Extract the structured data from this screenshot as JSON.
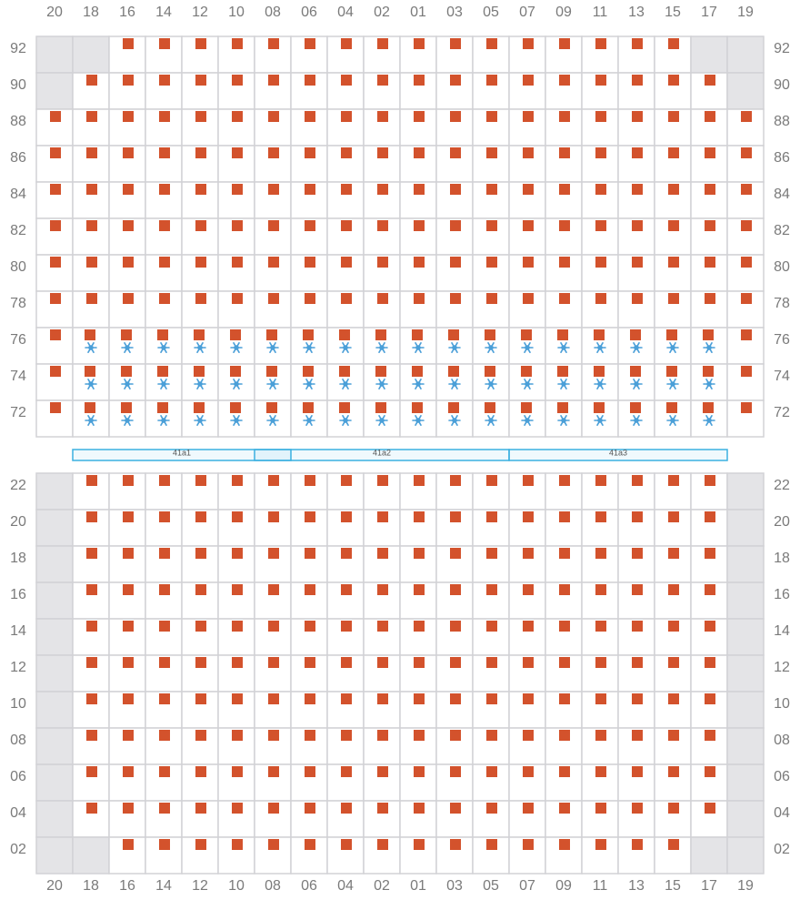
{
  "columns": [
    "20",
    "18",
    "16",
    "14",
    "12",
    "10",
    "08",
    "06",
    "04",
    "02",
    "01",
    "03",
    "05",
    "07",
    "09",
    "11",
    "13",
    "15",
    "17",
    "19"
  ],
  "top": {
    "rows": [
      {
        "label": "92",
        "blocked": [
          0,
          1,
          18,
          19
        ],
        "cold": []
      },
      {
        "label": "90",
        "blocked": [
          0,
          19
        ],
        "cold": []
      },
      {
        "label": "88",
        "blocked": [],
        "cold": []
      },
      {
        "label": "86",
        "blocked": [],
        "cold": []
      },
      {
        "label": "84",
        "blocked": [],
        "cold": []
      },
      {
        "label": "82",
        "blocked": [],
        "cold": []
      },
      {
        "label": "80",
        "blocked": [],
        "cold": []
      },
      {
        "label": "78",
        "blocked": [],
        "cold": []
      },
      {
        "label": "76",
        "blocked": [],
        "cold": [
          1,
          2,
          3,
          4,
          5,
          6,
          7,
          8,
          9,
          10,
          11,
          12,
          13,
          14,
          15,
          16,
          17,
          18
        ]
      },
      {
        "label": "74",
        "blocked": [],
        "cold": [
          1,
          2,
          3,
          4,
          5,
          6,
          7,
          8,
          9,
          10,
          11,
          12,
          13,
          14,
          15,
          16,
          17,
          18
        ]
      },
      {
        "label": "72",
        "blocked": [],
        "cold": [
          1,
          2,
          3,
          4,
          5,
          6,
          7,
          8,
          9,
          10,
          11,
          12,
          13,
          14,
          15,
          16,
          17,
          18
        ]
      }
    ]
  },
  "zones": [
    "41a1",
    "41a2",
    "41a3"
  ],
  "bottom": {
    "rows": [
      {
        "label": "22",
        "blocked": [
          0,
          19
        ],
        "cold": []
      },
      {
        "label": "20",
        "blocked": [
          0,
          19
        ],
        "cold": []
      },
      {
        "label": "18",
        "blocked": [
          0,
          19
        ],
        "cold": []
      },
      {
        "label": "16",
        "blocked": [
          0,
          19
        ],
        "cold": []
      },
      {
        "label": "14",
        "blocked": [
          0,
          19
        ],
        "cold": []
      },
      {
        "label": "12",
        "blocked": [
          0,
          19
        ],
        "cold": []
      },
      {
        "label": "10",
        "blocked": [
          0,
          19
        ],
        "cold": []
      },
      {
        "label": "08",
        "blocked": [
          0,
          19
        ],
        "cold": []
      },
      {
        "label": "06",
        "blocked": [
          0,
          19
        ],
        "cold": []
      },
      {
        "label": "04",
        "blocked": [
          0,
          19
        ],
        "cold": []
      },
      {
        "label": "02",
        "blocked": [
          0,
          1,
          18,
          19
        ],
        "cold": []
      }
    ]
  }
}
